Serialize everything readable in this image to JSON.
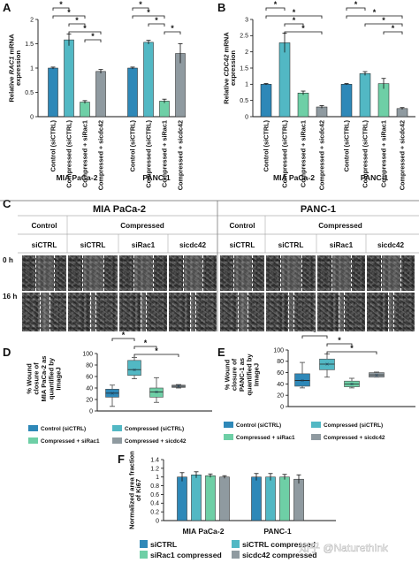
{
  "chart_data": [
    {
      "panel": "A",
      "type": "bar",
      "ylabel": "Relative RAC1 mRNA expression",
      "ylabel_parts": [
        "Relative ",
        "RAC1",
        " mRNA",
        "expression"
      ],
      "ylim": [
        0,
        2
      ],
      "yticks": [
        0,
        0.5,
        1,
        1.5,
        2
      ],
      "ytick_labels": [
        "0",
        "0.5",
        "1",
        "1.5",
        "2"
      ],
      "groups": [
        {
          "name": "MIA PaCa-2",
          "categories": [
            "Control (siCTRL)",
            "Compressed (siCTRL)",
            "Compressed + siRac1",
            "Compressed + sicdc42"
          ],
          "values": [
            1.0,
            1.58,
            0.3,
            0.93
          ],
          "errors": [
            0.02,
            0.12,
            0.03,
            0.04
          ],
          "colors": [
            "#2e88b8",
            "#52b8c4",
            "#6ecfa6",
            "#8f9aa0"
          ]
        },
        {
          "name": "PANC-1",
          "categories": [
            "Control (siCTRL)",
            "Compressed (siCTRL)",
            "Compressed + siRac1",
            "Compressed + sicdc42"
          ],
          "values": [
            1.0,
            1.53,
            0.32,
            1.3
          ],
          "errors": [
            0.02,
            0.04,
            0.04,
            0.2
          ],
          "colors": [
            "#2e88b8",
            "#52b8c4",
            "#6ecfa6",
            "#8f9aa0"
          ]
        }
      ],
      "significance": [
        {
          "group": 0,
          "from": 0,
          "to": 1,
          "label": "*"
        },
        {
          "group": 0,
          "from": 0,
          "to": 2,
          "label": "*"
        },
        {
          "group": 0,
          "from": 1,
          "to": 2,
          "label": "*"
        },
        {
          "group": 0,
          "from": 1,
          "to": 3,
          "label": "*"
        },
        {
          "group": 0,
          "from": 2,
          "to": 3,
          "label": "*"
        },
        {
          "group": 1,
          "from": 0,
          "to": 1,
          "label": "*"
        },
        {
          "group": 1,
          "from": 0,
          "to": 2,
          "label": "*"
        },
        {
          "group": 1,
          "from": 1,
          "to": 2,
          "label": "*"
        },
        {
          "group": 1,
          "from": 2,
          "to": 3,
          "label": "*"
        }
      ]
    },
    {
      "panel": "B",
      "type": "bar",
      "ylabel": "Relative CDC42 mRNA expression",
      "ylabel_parts": [
        "Relative ",
        "CDC42",
        " mRNA",
        "expression"
      ],
      "ylim": [
        0,
        3
      ],
      "yticks": [
        0,
        0.5,
        1,
        1.5,
        2,
        2.5,
        3
      ],
      "ytick_labels": [
        "0",
        "0.5",
        "1",
        "1.5",
        "2",
        "2.5",
        "3"
      ],
      "groups": [
        {
          "name": "MIA PaCa-2",
          "categories": [
            "Control (siCTRL)",
            "Compressed (siCTRL)",
            "Compressed + siRac1",
            "Compressed + sicdc42"
          ],
          "values": [
            1.0,
            2.28,
            0.73,
            0.3
          ],
          "errors": [
            0.02,
            0.3,
            0.06,
            0.04
          ],
          "colors": [
            "#2e88b8",
            "#52b8c4",
            "#6ecfa6",
            "#8f9aa0"
          ]
        },
        {
          "name": "PANC-1",
          "categories": [
            "Control (siCTRL)",
            "Compressed (siCTRL)",
            "Compressed + siRac1",
            "Compressed + sicdc42"
          ],
          "values": [
            1.0,
            1.33,
            1.02,
            0.25
          ],
          "errors": [
            0.02,
            0.06,
            0.16,
            0.03
          ],
          "colors": [
            "#2e88b8",
            "#52b8c4",
            "#6ecfa6",
            "#8f9aa0"
          ]
        }
      ],
      "significance": [
        {
          "group": 0,
          "from": 0,
          "to": 1,
          "label": "*"
        },
        {
          "group": 0,
          "from": 0,
          "to": 3,
          "label": "*"
        },
        {
          "group": 0,
          "from": 1,
          "to": 2,
          "label": "*"
        },
        {
          "group": 0,
          "from": 1,
          "to": 3,
          "label": "*"
        },
        {
          "group": 1,
          "from": 0,
          "to": 1,
          "label": "*"
        },
        {
          "group": 1,
          "from": 0,
          "to": 3,
          "label": "*"
        },
        {
          "group": 1,
          "from": 1,
          "to": 3,
          "label": "*"
        },
        {
          "group": 1,
          "from": 2,
          "to": 3,
          "label": "*"
        }
      ]
    },
    {
      "panel": "D",
      "type": "box",
      "ylabel": "% Wound closure of MIA PaCa-2 as quantified by ImageJ",
      "ylabel_lines": [
        "% Wound",
        "closure of",
        "MIA PaCa-2 as",
        "quantified by",
        "ImageJ"
      ],
      "ylim": [
        0,
        100
      ],
      "yticks": [
        0,
        20,
        40,
        60,
        80,
        100
      ],
      "ytick_labels": [
        "0",
        "20",
        "40",
        "60",
        "80",
        "100"
      ],
      "boxes": [
        {
          "name": "Control (siCTRL)",
          "min": 8,
          "q1": 24,
          "median": 31,
          "q3": 38,
          "max": 45,
          "color": "#2e88b8"
        },
        {
          "name": "Compressed (siCTRL)",
          "min": 56,
          "q1": 62,
          "median": 72,
          "q3": 88,
          "max": 93,
          "color": "#52b8c4"
        },
        {
          "name": "Compressed + siRac1",
          "min": 15,
          "q1": 24,
          "median": 33,
          "q3": 40,
          "max": 58,
          "color": "#6ecfa6"
        },
        {
          "name": "Compressed + sicdc42",
          "min": 40,
          "q1": 41,
          "median": 43,
          "q3": 45,
          "max": 46,
          "color": "#8f9aa0"
        }
      ],
      "legend": [
        "Control (siCTRL)",
        "Compressed (siCTRL)",
        "Compressed + siRac1",
        "Compressed + sicdc42"
      ],
      "significance": [
        {
          "from": 0,
          "to": 1,
          "label": "*"
        },
        {
          "from": 1,
          "to": 2,
          "label": "*"
        },
        {
          "from": 1,
          "to": 3,
          "label": "*"
        }
      ]
    },
    {
      "panel": "E",
      "type": "box",
      "ylabel": "% Wound closure of PANC-1 as quantified by ImageJ",
      "ylabel_lines": [
        "% Wound",
        "closure of",
        "PANC-1 as",
        "quantified by",
        "ImageJ"
      ],
      "ylim": [
        0,
        100
      ],
      "yticks": [
        0,
        20,
        40,
        60,
        80,
        100
      ],
      "ytick_labels": [
        "0",
        "20",
        "40",
        "60",
        "80",
        "100"
      ],
      "boxes": [
        {
          "name": "Control (siCTRL)",
          "min": 33,
          "q1": 36,
          "median": 46,
          "q3": 58,
          "max": 78,
          "color": "#2e88b8"
        },
        {
          "name": "Compressed (siCTRL)",
          "min": 52,
          "q1": 65,
          "median": 75,
          "q3": 84,
          "max": 93,
          "color": "#52b8c4"
        },
        {
          "name": "Compressed + siRac1",
          "min": 33,
          "q1": 35,
          "median": 40,
          "q3": 45,
          "max": 50,
          "color": "#6ecfa6"
        },
        {
          "name": "Compressed + sicdc42",
          "min": 52,
          "q1": 52,
          "median": 56,
          "q3": 60,
          "max": 61,
          "color": "#8f9aa0"
        }
      ],
      "legend": [
        "Control (siCTRL)",
        "Compressed (siCTRL)",
        "Compressed + siRac1",
        "Compressed + sicdc42"
      ],
      "significance": [
        {
          "from": 0,
          "to": 1,
          "label": "*"
        },
        {
          "from": 1,
          "to": 2,
          "label": "*"
        },
        {
          "from": 1,
          "to": 3,
          "label": "*"
        }
      ]
    },
    {
      "panel": "F",
      "type": "bar",
      "ylabel": "Normalized area fraction of Ki67",
      "ylabel_lines": [
        "Normalized area fraction",
        "of Ki67"
      ],
      "ylim": [
        0,
        1.4
      ],
      "yticks": [
        0,
        0.2,
        0.4,
        0.6,
        0.8,
        1,
        1.2,
        1.4
      ],
      "ytick_labels": [
        "0",
        "0.2",
        "0.4",
        "0.6",
        "0.8",
        "1",
        "1.2",
        "1.4"
      ],
      "groups": [
        {
          "name": "MIA PaCa-2",
          "categories": [
            "siCTRL",
            "siCTRL compressed",
            "siRac1 compressed",
            "sicdc42 compressed"
          ],
          "values": [
            1.0,
            1.05,
            1.03,
            1.0
          ],
          "errors": [
            0.1,
            0.07,
            0.04,
            0.03
          ],
          "colors": [
            "#2e88b8",
            "#52b8c4",
            "#6ecfa6",
            "#8f9aa0"
          ]
        },
        {
          "name": "PANC-1",
          "categories": [
            "siCTRL",
            "siCTRL compressed",
            "siRac1 compressed",
            "sicdc42 compressed"
          ],
          "values": [
            1.0,
            1.0,
            1.0,
            0.95
          ],
          "errors": [
            0.08,
            0.08,
            0.06,
            0.1
          ],
          "colors": [
            "#2e88b8",
            "#52b8c4",
            "#6ecfa6",
            "#8f9aa0"
          ]
        }
      ],
      "legend": [
        "siCTRL",
        "siCTRL compressed",
        "siRac1 compressed",
        "sicdc42 compressed"
      ]
    }
  ],
  "panel_c": {
    "letter": "C",
    "cell_lines": [
      "MIA PaCa-2",
      "PANC-1"
    ],
    "conditions": [
      "Control",
      "Compressed"
    ],
    "treatments": [
      "siCTRL",
      "siCTRL",
      "siRac1",
      "sicdc42"
    ],
    "timepoints": [
      "0 h",
      "16 h"
    ]
  },
  "panel_letters": {
    "a": "A",
    "b": "B",
    "d": "D",
    "e": "E",
    "f": "F"
  },
  "watermark": "知乎 @Naturethink"
}
